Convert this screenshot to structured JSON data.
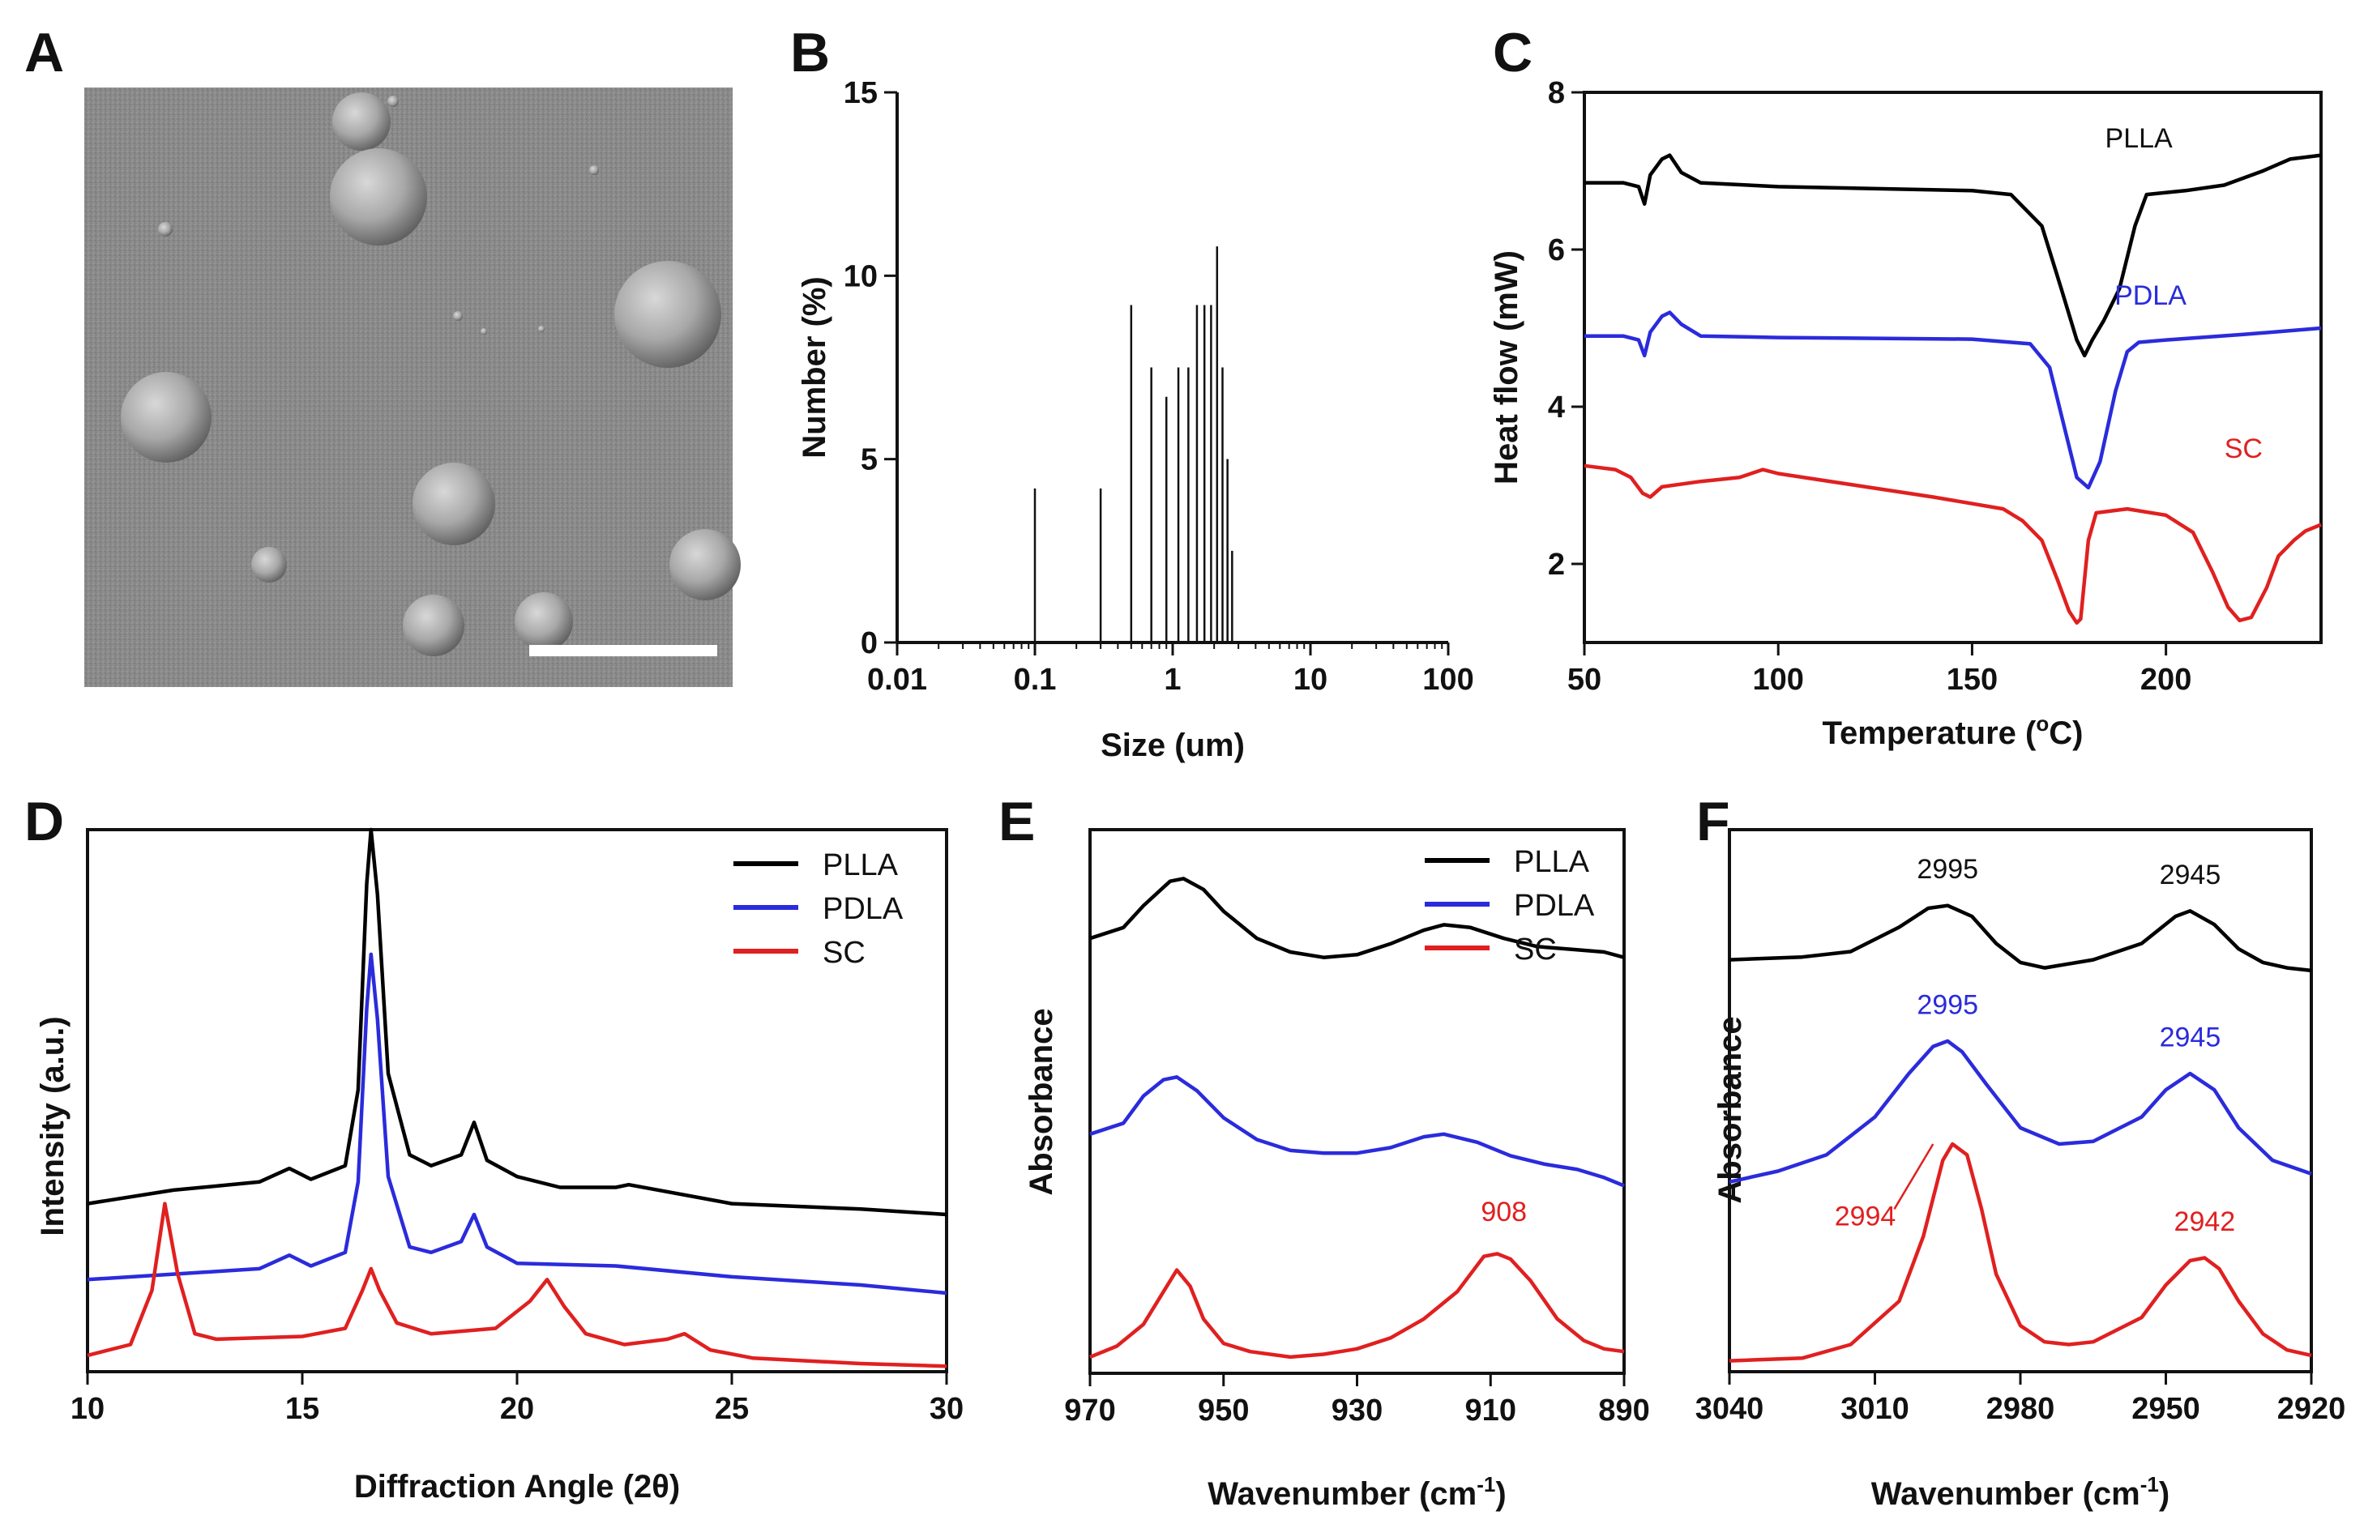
{
  "colors": {
    "PLLA": "#000000",
    "PDLA": "#2b2bdc",
    "SC": "#e02020",
    "axis": "#111111"
  },
  "panels": {
    "A": {
      "letter": "A",
      "content": "SEM micrograph of spherical microparticles with scale bar"
    },
    "B": {
      "letter": "B"
    },
    "C": {
      "letter": "C"
    },
    "D": {
      "letter": "D"
    },
    "E": {
      "letter": "E"
    },
    "F": {
      "letter": "F"
    }
  },
  "chart_data": [
    {
      "panel": "B",
      "type": "bar",
      "xlabel": "Size (um)",
      "ylabel": "Number (%)",
      "xscale": "log",
      "xlim": [
        0.01,
        100
      ],
      "ylim": [
        0,
        15
      ],
      "xticks": [
        "0.01",
        "0.1",
        "1",
        "10",
        "100"
      ],
      "yticks": [
        "0",
        "5",
        "10",
        "15"
      ],
      "x": [
        0.1,
        0.3,
        0.5,
        0.7,
        0.9,
        1.1,
        1.3,
        1.5,
        1.7,
        1.9,
        2.1,
        2.3,
        2.5,
        2.7
      ],
      "values": [
        4.2,
        4.2,
        9.2,
        7.5,
        6.7,
        7.5,
        7.5,
        9.2,
        9.2,
        9.2,
        10.8,
        7.5,
        5.0,
        2.5
      ]
    },
    {
      "panel": "C",
      "type": "line",
      "xlabel": "Temperature (",
      "xlabel_sup": "o",
      "xlabel_end": "C)",
      "ylabel": "Heat flow (mW)",
      "xlim": [
        50,
        240
      ],
      "ylim": [
        1,
        8
      ],
      "xticks": [
        "50",
        "100",
        "150",
        "200"
      ],
      "yticks": [
        "2",
        "4",
        "6",
        "8"
      ],
      "series": [
        {
          "name": "PLLA",
          "color": "#000000",
          "x": [
            50,
            60,
            64,
            65.5,
            67,
            70,
            72,
            75,
            80,
            100,
            150,
            160,
            168,
            173,
            177,
            179,
            181,
            184,
            188,
            192,
            195,
            205,
            215,
            225,
            232,
            240
          ],
          "y": [
            6.85,
            6.85,
            6.8,
            6.58,
            6.95,
            7.15,
            7.2,
            6.98,
            6.85,
            6.8,
            6.75,
            6.7,
            6.3,
            5.5,
            4.85,
            4.65,
            4.85,
            5.1,
            5.5,
            6.3,
            6.7,
            6.75,
            6.82,
            7.0,
            7.15,
            7.2
          ]
        },
        {
          "name": "PDLA",
          "color": "#2b2bdc",
          "x": [
            50,
            60,
            64,
            65.5,
            67,
            70,
            72,
            75,
            80,
            100,
            150,
            165,
            170,
            174,
            177,
            180,
            183,
            187,
            190,
            193,
            200,
            220,
            240
          ],
          "y": [
            4.9,
            4.9,
            4.85,
            4.65,
            4.95,
            5.15,
            5.2,
            5.05,
            4.9,
            4.88,
            4.86,
            4.8,
            4.5,
            3.7,
            3.1,
            2.97,
            3.3,
            4.2,
            4.7,
            4.82,
            4.85,
            4.92,
            5.0
          ]
        },
        {
          "name": "SC",
          "color": "#e02020",
          "x": [
            50,
            58,
            62,
            65,
            67,
            70,
            80,
            90,
            96,
            100,
            120,
            140,
            158,
            163,
            168,
            172,
            175,
            177,
            178,
            180,
            182,
            190,
            200,
            207,
            212,
            216,
            219,
            222,
            226,
            229,
            233,
            236,
            240
          ],
          "y": [
            3.25,
            3.2,
            3.1,
            2.9,
            2.85,
            2.98,
            3.05,
            3.1,
            3.2,
            3.15,
            3.0,
            2.85,
            2.7,
            2.55,
            2.3,
            1.8,
            1.4,
            1.25,
            1.3,
            2.3,
            2.65,
            2.7,
            2.62,
            2.4,
            1.9,
            1.45,
            1.28,
            1.32,
            1.7,
            2.1,
            2.3,
            2.42,
            2.5
          ]
        }
      ],
      "annotations": [
        {
          "text": "PLLA",
          "x": 193,
          "y": 7.3,
          "color": "#111111"
        },
        {
          "text": "PDLA",
          "x": 196,
          "y": 5.3,
          "color": "#2b2bdc"
        },
        {
          "text": "SC",
          "x": 220,
          "y": 3.35,
          "color": "#e02020"
        }
      ]
    },
    {
      "panel": "D",
      "type": "line",
      "xlabel": "Diffraction Angle (2θ)",
      "ylabel": "Intensity (a.u.)",
      "xlim": [
        10,
        30
      ],
      "ylim": [
        0,
        100
      ],
      "xticks": [
        "10",
        "15",
        "20",
        "25",
        "30"
      ],
      "legend": {
        "location": "top-right",
        "entries": [
          "PLLA",
          "PDLA",
          "SC"
        ]
      },
      "series": [
        {
          "name": "PLLA",
          "color": "#000000",
          "x": [
            10,
            12,
            14,
            14.7,
            15.2,
            16,
            16.3,
            16.5,
            16.6,
            16.75,
            17,
            17.5,
            18,
            18.7,
            19,
            19.3,
            20,
            21,
            22.3,
            22.6,
            25,
            28,
            30
          ],
          "y": [
            31,
            33.5,
            35,
            37.5,
            35.5,
            38,
            52,
            90,
            100,
            88,
            55,
            40,
            38,
            40,
            46,
            39,
            36,
            34,
            34,
            34.5,
            31,
            30,
            29
          ]
        },
        {
          "name": "PDLA",
          "color": "#2b2bdc",
          "x": [
            10,
            12,
            14,
            14.7,
            15.2,
            16,
            16.3,
            16.5,
            16.6,
            16.75,
            17,
            17.5,
            18,
            18.7,
            19,
            19.3,
            20,
            22.3,
            25,
            28,
            30
          ],
          "y": [
            17,
            18,
            19,
            21.5,
            19.5,
            22,
            35,
            67,
            77,
            65,
            36,
            23,
            22,
            24,
            29,
            23,
            20,
            19.5,
            17.5,
            16,
            14.5
          ]
        },
        {
          "name": "SC",
          "color": "#e02020",
          "x": [
            10,
            11,
            11.5,
            11.8,
            12.1,
            12.5,
            13,
            15,
            16,
            16.4,
            16.6,
            16.8,
            17.2,
            18,
            19.5,
            20.3,
            20.7,
            21.1,
            21.6,
            22.5,
            23.5,
            23.9,
            24.5,
            25.5,
            28,
            30
          ],
          "y": [
            3,
            5,
            15,
            31,
            18,
            7,
            6,
            6.5,
            8,
            15,
            19,
            15,
            9,
            7,
            8,
            13,
            17,
            12,
            7,
            5,
            6,
            7,
            4,
            2.5,
            1.5,
            1
          ]
        }
      ]
    },
    {
      "panel": "E",
      "type": "line",
      "xlabel": "Wavenumber (cm",
      "xlabel_sup": "-1",
      "xlabel_end": ")",
      "ylabel": "Absorbance",
      "xlim": [
        970,
        890
      ],
      "ylim": [
        0,
        100
      ],
      "xticks": [
        "970",
        "950",
        "930",
        "910",
        "890"
      ],
      "legend": {
        "location": "top-right",
        "entries": [
          "PLLA",
          "PDLA",
          "SC"
        ]
      },
      "series": [
        {
          "name": "PLLA",
          "color": "#000000",
          "x": [
            970,
            965,
            962,
            958,
            956,
            953,
            950,
            945,
            940,
            935,
            930,
            925,
            920,
            917,
            913,
            908,
            903,
            898,
            893,
            890
          ],
          "y": [
            80,
            82,
            86,
            90.5,
            91,
            89,
            85,
            80,
            77.5,
            76.5,
            77,
            79,
            81.5,
            82.5,
            82,
            80,
            78.5,
            78,
            77.5,
            76.5
          ]
        },
        {
          "name": "PDLA",
          "color": "#2b2bdc",
          "x": [
            970,
            965,
            962,
            959,
            957,
            954,
            950,
            945,
            940,
            935,
            930,
            925,
            920,
            917,
            912,
            907,
            902,
            897,
            893,
            890
          ],
          "y": [
            44,
            46,
            51,
            54,
            54.5,
            52,
            47,
            43,
            41,
            40.5,
            40.5,
            41.5,
            43.5,
            44,
            42.5,
            40,
            38.5,
            37.5,
            36,
            34.5
          ]
        },
        {
          "name": "SC",
          "color": "#e02020",
          "x": [
            970,
            966,
            962,
            959,
            957,
            955,
            953,
            950,
            946,
            940,
            935,
            930,
            925,
            920,
            915,
            911,
            909,
            907,
            904,
            900,
            896,
            893,
            890
          ],
          "y": [
            3,
            5,
            9,
            15,
            19,
            16,
            10,
            5.5,
            4,
            3,
            3.5,
            4.5,
            6.5,
            10,
            15,
            21.5,
            22,
            21,
            17,
            10,
            6,
            4.5,
            4
          ]
        }
      ],
      "annotations": [
        {
          "text": "908",
          "x": 908,
          "y": 28,
          "color": "#e02020"
        }
      ]
    },
    {
      "panel": "F",
      "type": "line",
      "xlabel": "Wavenumber (cm",
      "xlabel_sup": "-1",
      "xlabel_end": ")",
      "ylabel": "Absorbance",
      "xlim": [
        3040,
        2920
      ],
      "ylim": [
        0,
        100
      ],
      "xticks": [
        "3040",
        "3010",
        "2980",
        "2950",
        "2920"
      ],
      "series": [
        {
          "name": "PLLA",
          "color": "#000000",
          "x": [
            3040,
            3025,
            3015,
            3005,
            2999,
            2995,
            2990,
            2985,
            2980,
            2975,
            2965,
            2955,
            2948,
            2945,
            2940,
            2935,
            2930,
            2925,
            2920
          ],
          "y": [
            76,
            76.5,
            77.5,
            82,
            85.5,
            86,
            84,
            79,
            75.5,
            74.5,
            76,
            79,
            84,
            85,
            82.5,
            78,
            75.5,
            74.5,
            74
          ]
        },
        {
          "name": "PDLA",
          "color": "#2b2bdc",
          "x": [
            3040,
            3030,
            3020,
            3010,
            3003,
            2998,
            2995,
            2992,
            2987,
            2980,
            2972,
            2965,
            2955,
            2950,
            2945,
            2940,
            2935,
            2928,
            2920
          ],
          "y": [
            35,
            37,
            40,
            47,
            55,
            60,
            61,
            59,
            53,
            45,
            42,
            42.5,
            47,
            52,
            55,
            52,
            45,
            39,
            36.5
          ]
        },
        {
          "name": "SC",
          "color": "#e02020",
          "x": [
            3040,
            3025,
            3015,
            3005,
            3000,
            2996,
            2994,
            2991,
            2988,
            2985,
            2980,
            2975,
            2970,
            2965,
            2955,
            2950,
            2945,
            2942,
            2939,
            2935,
            2930,
            2925,
            2920
          ],
          "y": [
            2,
            2.5,
            5,
            13,
            25,
            39,
            42,
            40,
            30,
            18,
            8.5,
            5.5,
            5,
            5.5,
            10,
            16,
            20.5,
            21,
            19,
            13,
            7,
            4,
            3
          ]
        }
      ],
      "annotations": [
        {
          "text": "2995",
          "x": 2995,
          "y": 91,
          "color": "#111111"
        },
        {
          "text": "2945",
          "x": 2945,
          "y": 90,
          "color": "#111111"
        },
        {
          "text": "2995",
          "x": 2995,
          "y": 66,
          "color": "#2b2bdc"
        },
        {
          "text": "2945",
          "x": 2945,
          "y": 60,
          "color": "#2b2bdc"
        },
        {
          "text": "2994",
          "x": 3012,
          "y": 27,
          "color": "#e02020"
        },
        {
          "text": "2942",
          "x": 2942,
          "y": 26,
          "color": "#e02020"
        }
      ]
    }
  ]
}
